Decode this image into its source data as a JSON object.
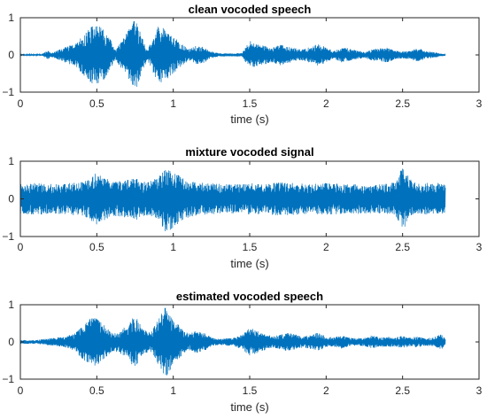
{
  "chart_data": [
    {
      "type": "line",
      "title": "clean vocoded speech",
      "xlabel": "time (s)",
      "ylabel": "",
      "xlim": [
        0,
        3
      ],
      "ylim": [
        -1,
        1
      ],
      "xticks": [
        0,
        0.5,
        1,
        1.5,
        2,
        2.5,
        3
      ],
      "xtick_labels": [
        "0",
        "0.5",
        "1",
        "1.5",
        "2",
        "2.5",
        "3"
      ],
      "yticks": [
        -1,
        0,
        1
      ],
      "ytick_labels": [
        "−1",
        "0",
        "1"
      ],
      "color": "#0072BD",
      "grid": false,
      "series": [
        {
          "t": [
            0,
            0.14,
            0.18,
            0.2,
            0.3,
            0.36,
            0.4,
            0.45,
            0.5,
            0.55,
            0.6,
            0.62,
            0.65,
            0.7,
            0.75,
            0.8,
            0.83,
            0.86,
            0.9,
            0.95,
            1.0,
            1.05,
            1.1,
            1.15,
            1.2,
            1.24,
            1.3,
            1.35,
            1.4,
            1.45,
            1.5,
            1.55,
            1.6,
            1.65,
            1.7,
            1.75,
            1.8,
            1.85,
            1.9,
            1.95,
            2.0,
            2.05,
            2.1,
            2.15,
            2.2,
            2.25,
            2.3,
            2.35,
            2.4,
            2.45,
            2.5,
            2.55,
            2.6,
            2.65,
            2.7,
            2.75,
            2.78
          ],
          "envelope": [
            0.02,
            0.02,
            0.12,
            0.05,
            0.22,
            0.3,
            0.48,
            0.72,
            0.85,
            0.65,
            0.35,
            0.12,
            0.3,
            0.62,
            0.98,
            0.45,
            0.12,
            0.4,
            0.78,
            0.7,
            0.5,
            0.32,
            0.15,
            0.25,
            0.22,
            0.1,
            0.05,
            0.04,
            0.04,
            0.05,
            0.38,
            0.3,
            0.25,
            0.2,
            0.28,
            0.22,
            0.18,
            0.15,
            0.22,
            0.3,
            0.2,
            0.1,
            0.2,
            0.18,
            0.12,
            0.08,
            0.15,
            0.18,
            0.2,
            0.12,
            0.1,
            0.12,
            0.2,
            0.1,
            0.08,
            0.04,
            0.02
          ]
        }
      ]
    },
    {
      "type": "line",
      "title": "mixture vocoded signal",
      "xlabel": "time (s)",
      "ylabel": "",
      "xlim": [
        0,
        3
      ],
      "ylim": [
        -1,
        1
      ],
      "xticks": [
        0,
        0.5,
        1,
        1.5,
        2,
        2.5,
        3
      ],
      "xtick_labels": [
        "0",
        "0.5",
        "1",
        "1.5",
        "2",
        "2.5",
        "3"
      ],
      "yticks": [
        -1,
        0,
        1
      ],
      "ytick_labels": [
        "−1",
        "0",
        "1"
      ],
      "color": "#0072BD",
      "grid": false,
      "series": [
        {
          "t": [
            0,
            0.1,
            0.2,
            0.3,
            0.4,
            0.45,
            0.5,
            0.55,
            0.6,
            0.7,
            0.75,
            0.8,
            0.9,
            0.95,
            1.0,
            1.05,
            1.1,
            1.2,
            1.3,
            1.4,
            1.5,
            1.6,
            1.7,
            1.8,
            1.9,
            2.0,
            2.1,
            2.2,
            2.3,
            2.4,
            2.45,
            2.5,
            2.55,
            2.6,
            2.7,
            2.78
          ],
          "envelope": [
            0.4,
            0.42,
            0.4,
            0.42,
            0.45,
            0.55,
            0.72,
            0.6,
            0.45,
            0.5,
            0.6,
            0.45,
            0.55,
            0.9,
            0.8,
            0.6,
            0.5,
            0.42,
            0.4,
            0.4,
            0.42,
            0.4,
            0.45,
            0.42,
            0.4,
            0.42,
            0.4,
            0.4,
            0.38,
            0.4,
            0.45,
            0.85,
            0.55,
            0.4,
            0.45,
            0.38
          ]
        }
      ]
    },
    {
      "type": "line",
      "title": "estimated vocoded speech",
      "xlabel": "time (s)",
      "ylabel": "",
      "xlim": [
        0,
        3
      ],
      "ylim": [
        -1,
        1
      ],
      "xticks": [
        0,
        0.5,
        1,
        1.5,
        2,
        2.5,
        3
      ],
      "xtick_labels": [
        "0",
        "0.5",
        "1",
        "1.5",
        "2",
        "2.5",
        "3"
      ],
      "yticks": [
        -1,
        0,
        1
      ],
      "ytick_labels": [
        "−1",
        "0",
        "1"
      ],
      "color": "#0072BD",
      "grid": false,
      "series": [
        {
          "t": [
            0,
            0.1,
            0.2,
            0.3,
            0.36,
            0.4,
            0.45,
            0.5,
            0.55,
            0.6,
            0.65,
            0.7,
            0.75,
            0.8,
            0.85,
            0.9,
            0.95,
            1.0,
            1.05,
            1.1,
            1.15,
            1.2,
            1.25,
            1.3,
            1.35,
            1.4,
            1.45,
            1.5,
            1.55,
            1.6,
            1.65,
            1.7,
            1.75,
            1.8,
            1.85,
            1.9,
            1.95,
            2.0,
            2.05,
            2.1,
            2.15,
            2.2,
            2.25,
            2.3,
            2.35,
            2.4,
            2.45,
            2.5,
            2.55,
            2.6,
            2.65,
            2.7,
            2.75,
            2.78
          ],
          "envelope": [
            0.05,
            0.05,
            0.1,
            0.15,
            0.25,
            0.45,
            0.62,
            0.65,
            0.45,
            0.25,
            0.3,
            0.45,
            0.72,
            0.35,
            0.25,
            0.6,
            0.98,
            0.6,
            0.4,
            0.22,
            0.3,
            0.25,
            0.12,
            0.08,
            0.1,
            0.12,
            0.2,
            0.38,
            0.3,
            0.22,
            0.15,
            0.2,
            0.25,
            0.2,
            0.15,
            0.2,
            0.25,
            0.15,
            0.12,
            0.18,
            0.12,
            0.1,
            0.12,
            0.18,
            0.12,
            0.15,
            0.12,
            0.18,
            0.12,
            0.15,
            0.1,
            0.12,
            0.22,
            0.1
          ]
        }
      ]
    }
  ]
}
